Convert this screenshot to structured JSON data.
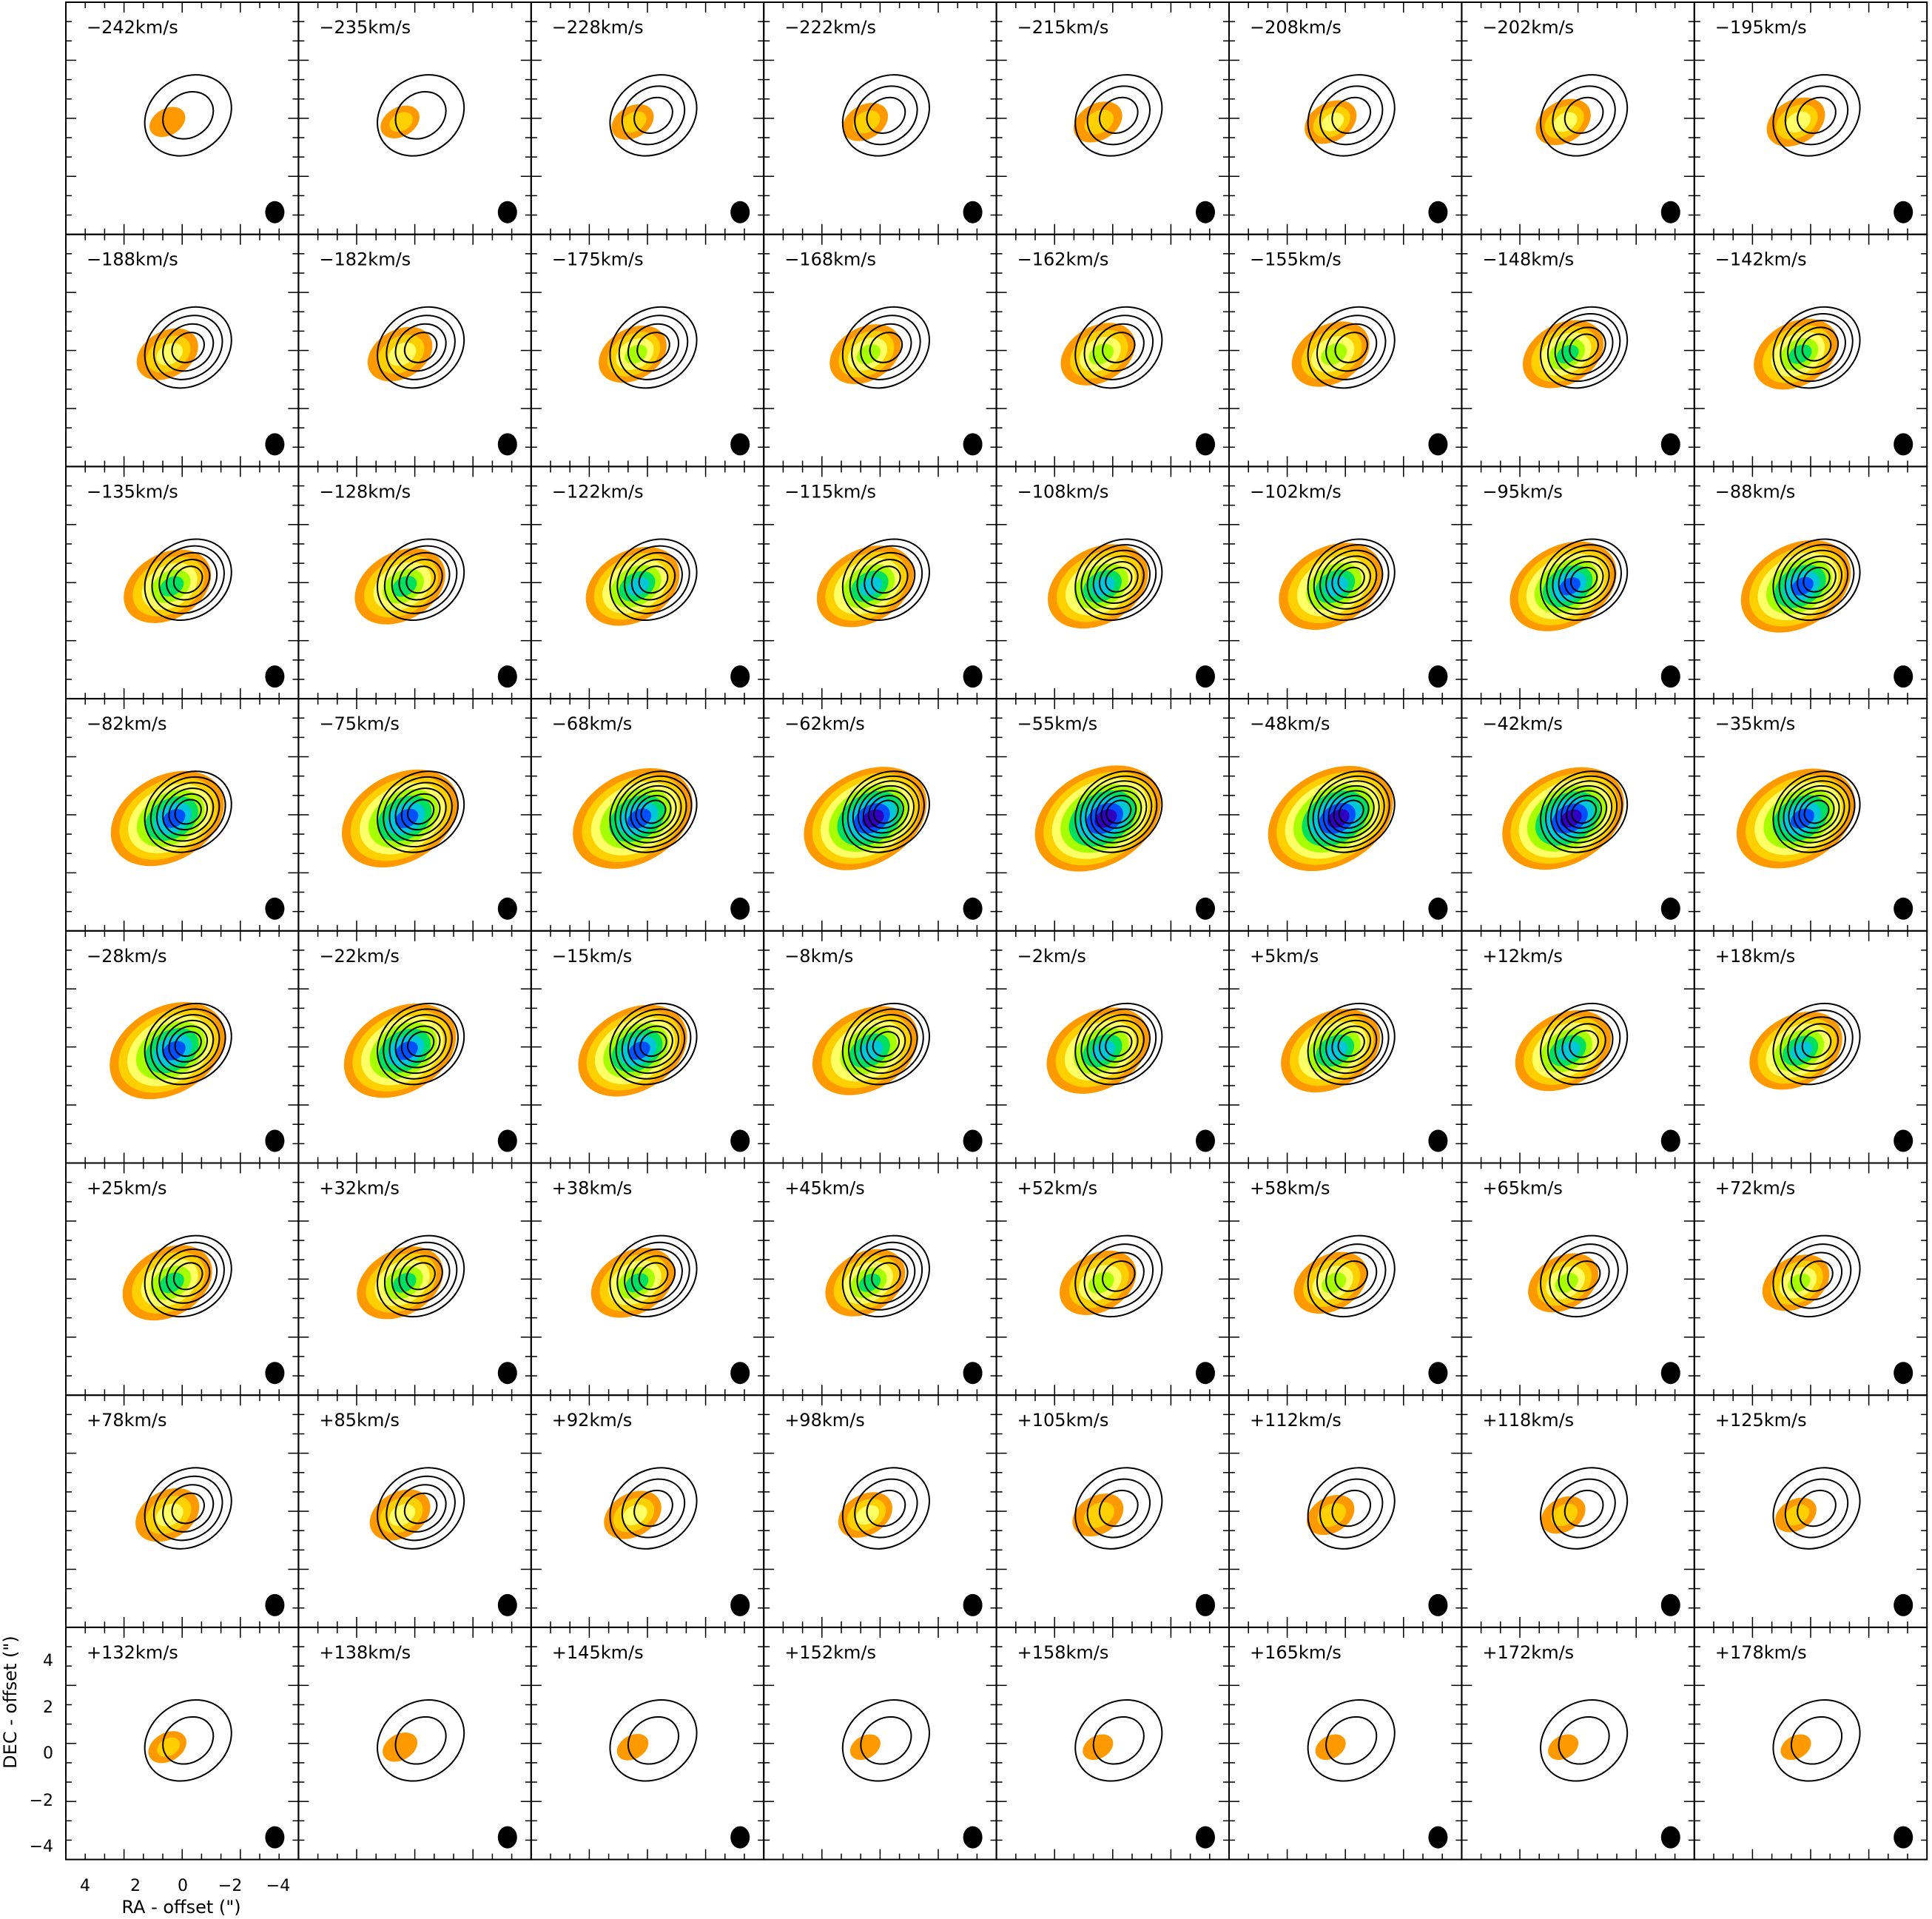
{
  "axes": {
    "xlabel": "RA - offset (\")",
    "ylabel": "DEC - offset (\")",
    "x_ticks": [
      "4",
      "2",
      "0",
      "−2",
      "−4"
    ],
    "y_ticks": [
      "4",
      "2",
      "0",
      "−2",
      "−4"
    ],
    "x_range": [
      5,
      -5
    ],
    "y_range": [
      -5,
      5
    ]
  },
  "colormap": [
    "#ff9900",
    "#ffd000",
    "#ffff66",
    "#a8ff00",
    "#00e060",
    "#00c8d8",
    "#0050ff",
    "#3000c0",
    "#e00090"
  ],
  "channels": [
    "−242km/s",
    "−235km/s",
    "−228km/s",
    "−222km/s",
    "−215km/s",
    "−208km/s",
    "−202km/s",
    "−195km/s",
    "−188km/s",
    "−182km/s",
    "−175km/s",
    "−168km/s",
    "−162km/s",
    "−155km/s",
    "−148km/s",
    "−142km/s",
    "−135km/s",
    "−128km/s",
    "−122km/s",
    "−115km/s",
    "−108km/s",
    "−102km/s",
    "−95km/s",
    "−88km/s",
    "−82km/s",
    "−75km/s",
    "−68km/s",
    "−62km/s",
    "−55km/s",
    "−48km/s",
    "−42km/s",
    "−35km/s",
    "−28km/s",
    "−22km/s",
    "−15km/s",
    "−8km/s",
    "−2km/s",
    "+5km/s",
    "+12km/s",
    "+18km/s",
    "+25km/s",
    "+32km/s",
    "+38km/s",
    "+45km/s",
    "+52km/s",
    "+58km/s",
    "+65km/s",
    "+72km/s",
    "+78km/s",
    "+85km/s",
    "+92km/s",
    "+98km/s",
    "+105km/s",
    "+112km/s",
    "+118km/s",
    "+125km/s",
    "+132km/s",
    "+138km/s",
    "+145km/s",
    "+152km/s",
    "+158km/s",
    "+165km/s",
    "+172km/s",
    "+178km/s"
  ]
}
